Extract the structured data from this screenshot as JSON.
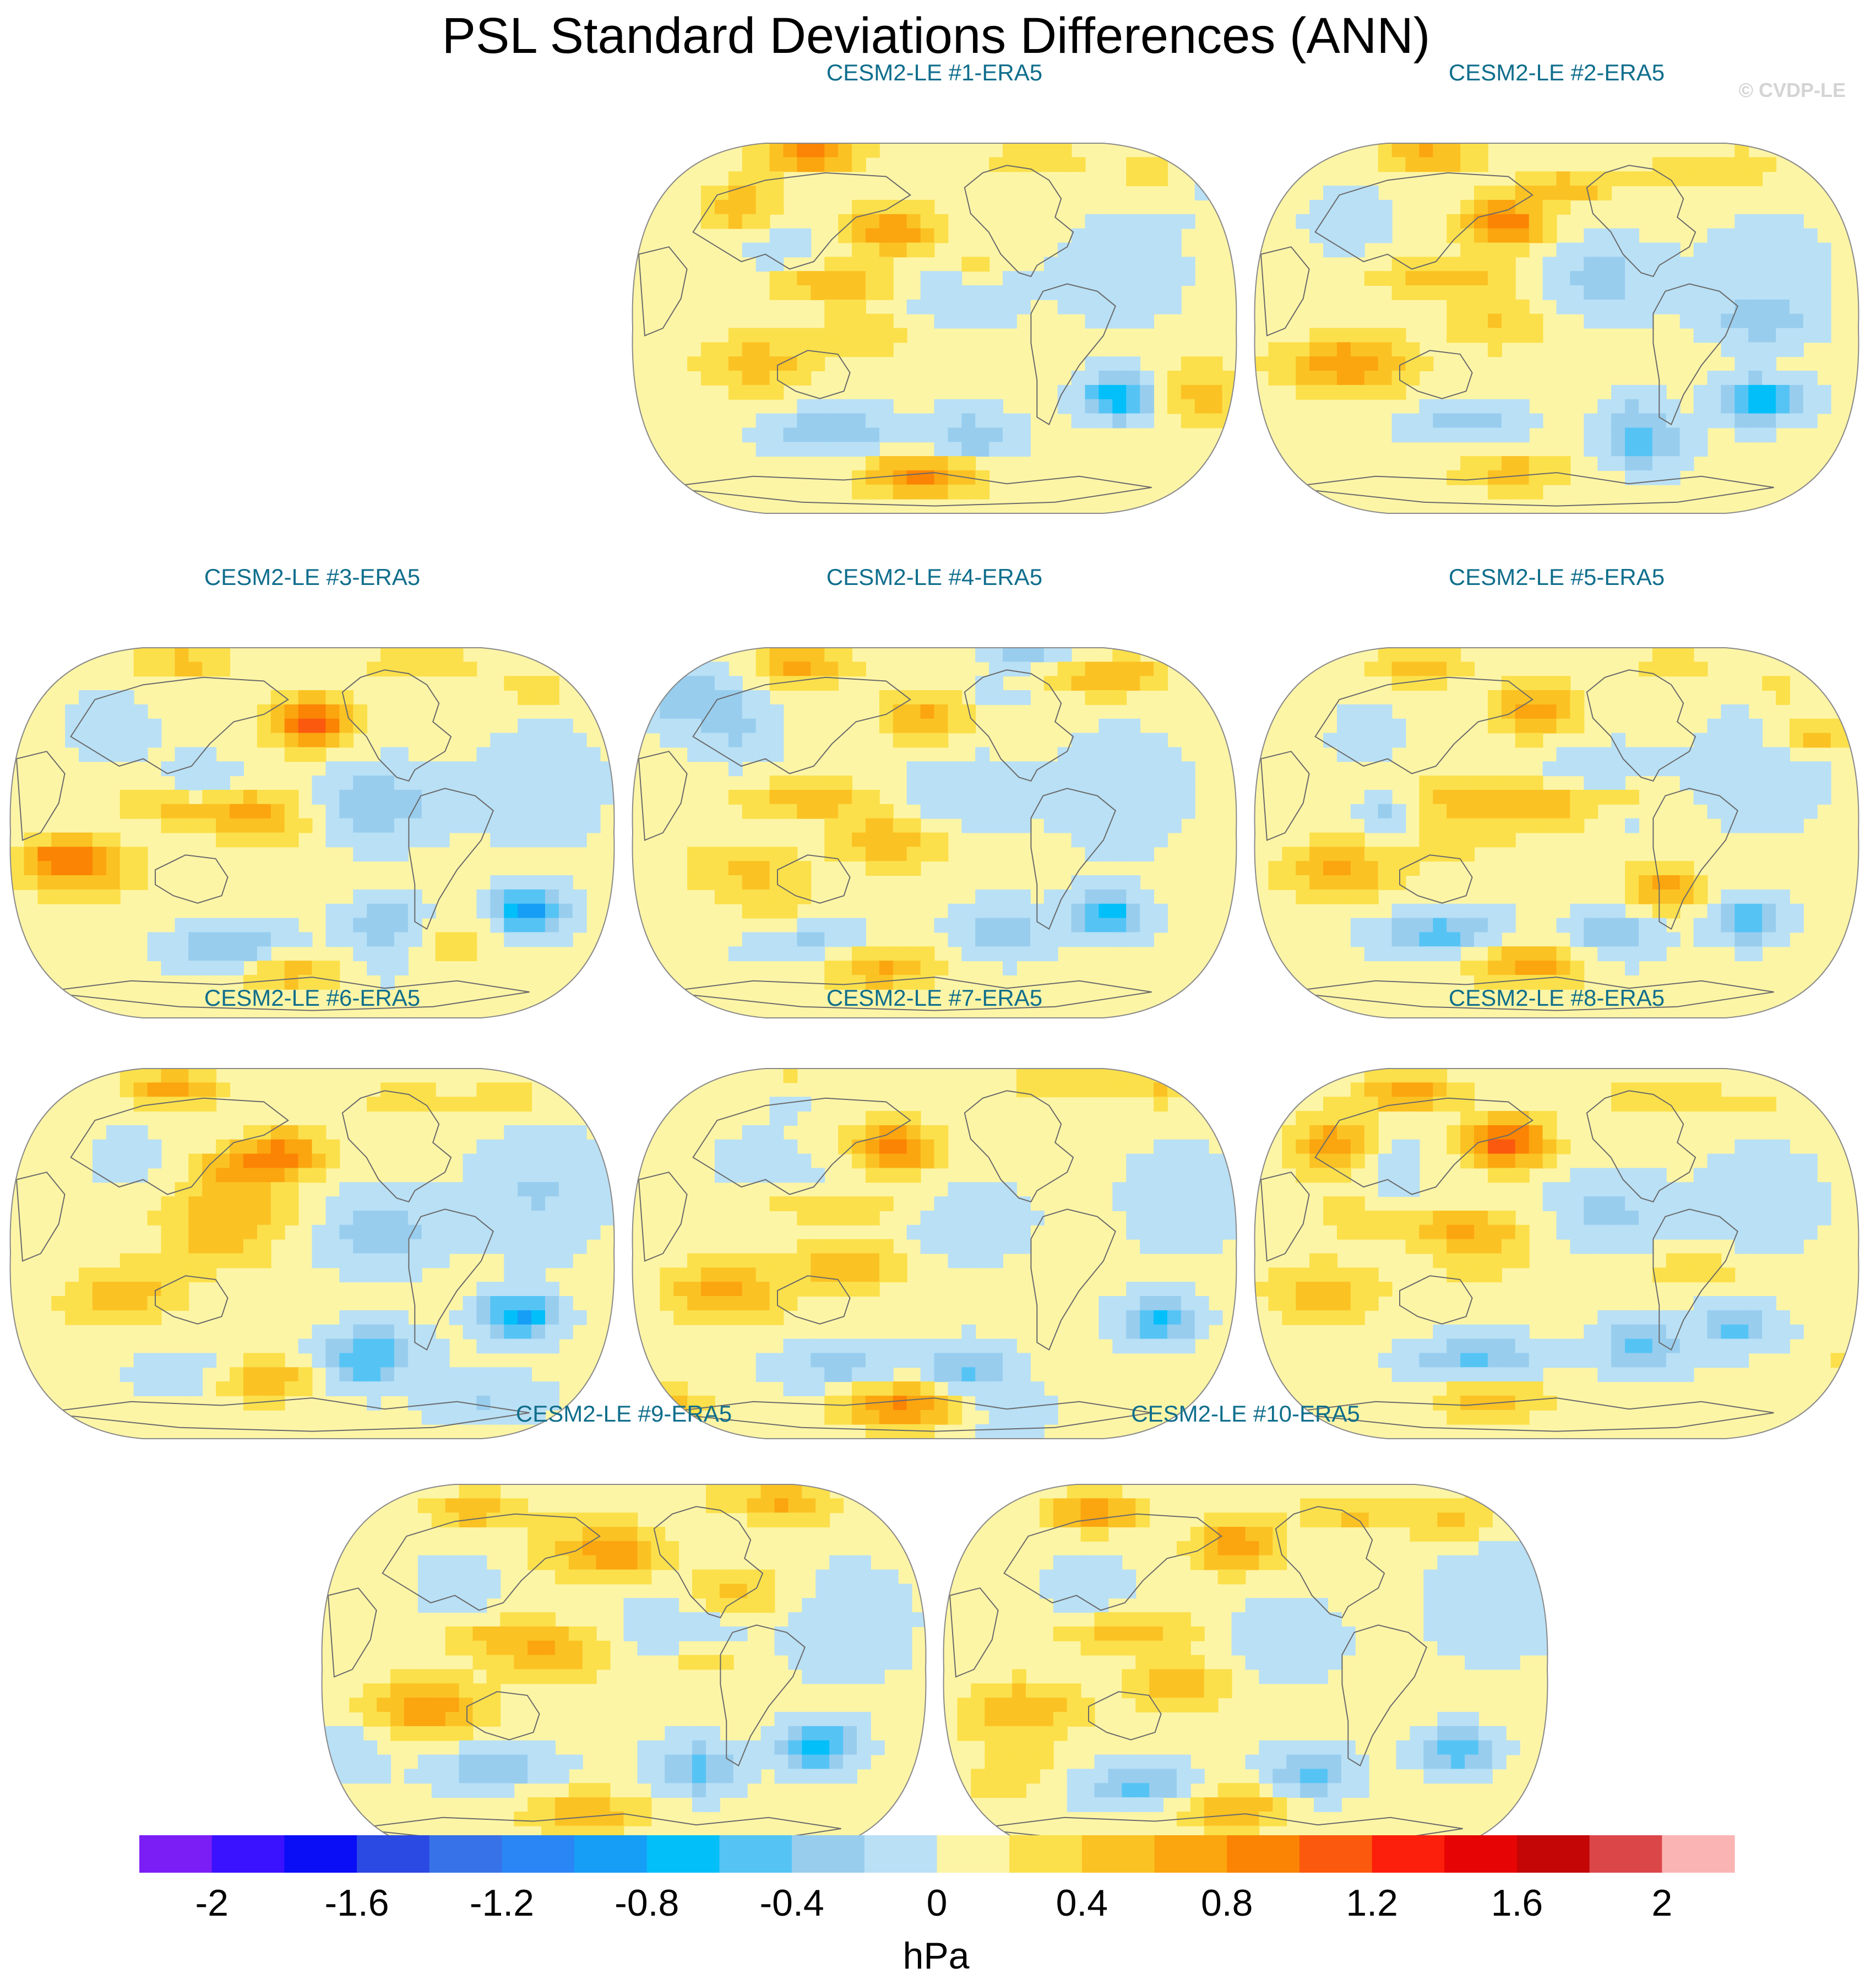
{
  "chart_data": {
    "type": "heatmap",
    "title": "PSL Standard Deviations Differences (ANN)",
    "watermark": "© CVDP-LE",
    "projection": "Robinson-like global map (Pacific-centered)",
    "panels": [
      {
        "title": "CESM2-LE #1-ERA5"
      },
      {
        "title": "CESM2-LE #2-ERA5"
      },
      {
        "title": "CESM2-LE #3-ERA5"
      },
      {
        "title": "CESM2-LE #4-ERA5"
      },
      {
        "title": "CESM2-LE #5-ERA5"
      },
      {
        "title": "CESM2-LE #6-ERA5"
      },
      {
        "title": "CESM2-LE #7-ERA5"
      },
      {
        "title": "CESM2-LE #8-ERA5"
      },
      {
        "title": "CESM2-LE #9-ERA5"
      },
      {
        "title": "CESM2-LE #10-ERA5"
      }
    ],
    "colorbar": {
      "label": "hPa",
      "range": [
        -2.2,
        2.2
      ],
      "step": 0.2,
      "tick_labels": [
        "-2",
        "-1.6",
        "-1.2",
        "-0.8",
        "-0.4",
        "0",
        "0.4",
        "0.8",
        "1.2",
        "1.6",
        "2"
      ],
      "colors": [
        "#7b1ef5",
        "#3a12ff",
        "#0a0ef6",
        "#2b49e3",
        "#3872e8",
        "#2a86f5",
        "#169ef6",
        "#02bff9",
        "#55c4f5",
        "#98cdee",
        "#b9e0f5",
        "#fdf5a6",
        "#fbe04b",
        "#fbc224",
        "#fba50f",
        "#fb8404",
        "#fb5a0e",
        "#fb1f0c",
        "#e70404",
        "#c40606",
        "#db4649",
        "#fbb4b4"
      ]
    }
  }
}
